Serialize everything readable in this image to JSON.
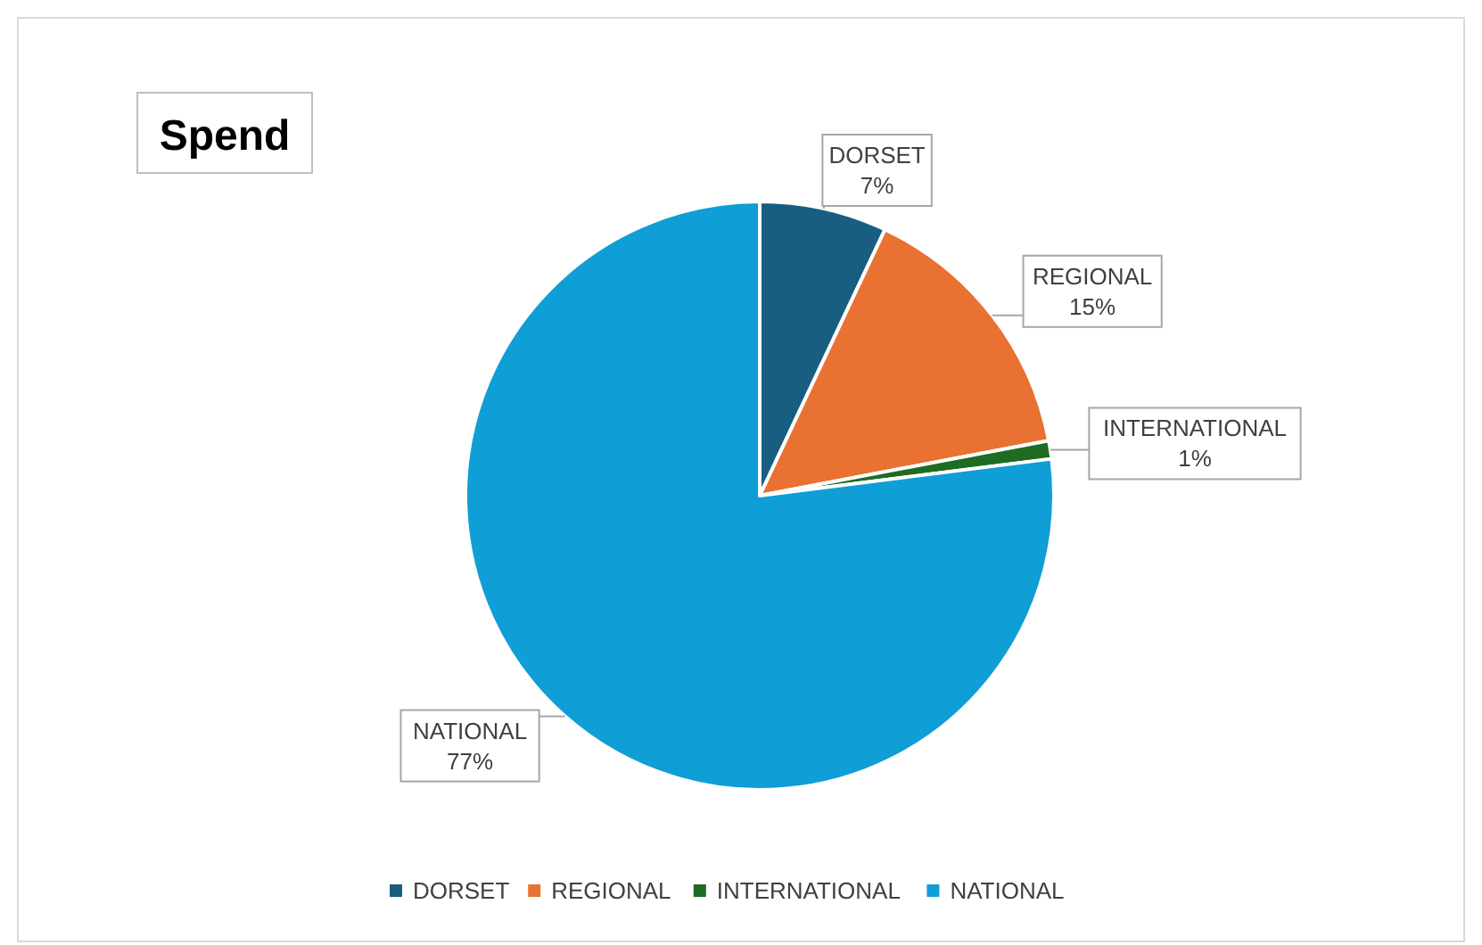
{
  "chart_data": {
    "type": "pie",
    "title": "Spend",
    "categories": [
      "DORSET",
      "REGIONAL",
      "INTERNATIONAL",
      "NATIONAL"
    ],
    "values": [
      7,
      15,
      1,
      77
    ],
    "colors": [
      "#175e80",
      "#e97131",
      "#1e6b24",
      "#0f9ed5"
    ],
    "value_labels": [
      "7%",
      "15%",
      "1%",
      "77%"
    ],
    "legend": "bottom"
  }
}
